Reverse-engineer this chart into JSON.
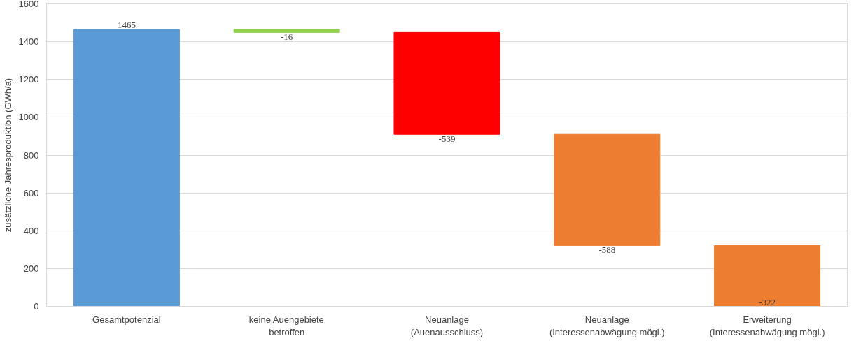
{
  "chart_data": {
    "type": "bar",
    "ylabel": "zusätzliche Jahresproduktion (GWh/a)",
    "categories": [
      "Gesamtpotenzial",
      "keine Auengebiete\nbetroffen",
      "Neuanlage\n(Auenausschluss)",
      "Neuanlage\n(Interessenabwägung mögl.)",
      "Erweiterung\n(Interessenabwägung mögl.)"
    ],
    "values": [
      1465,
      -16,
      -539,
      -588,
      -322
    ],
    "base": [
      0,
      1465,
      1449,
      910,
      322
    ],
    "colors": [
      "#5b9bd5",
      "#92d050",
      "#ff0000",
      "#ed7d31",
      "#ed7d31"
    ],
    "ylim": [
      0,
      1600
    ],
    "yticks": [
      0,
      200,
      400,
      600,
      800,
      1000,
      1200,
      1400,
      1600
    ],
    "grid": "y",
    "data_labels": true
  }
}
